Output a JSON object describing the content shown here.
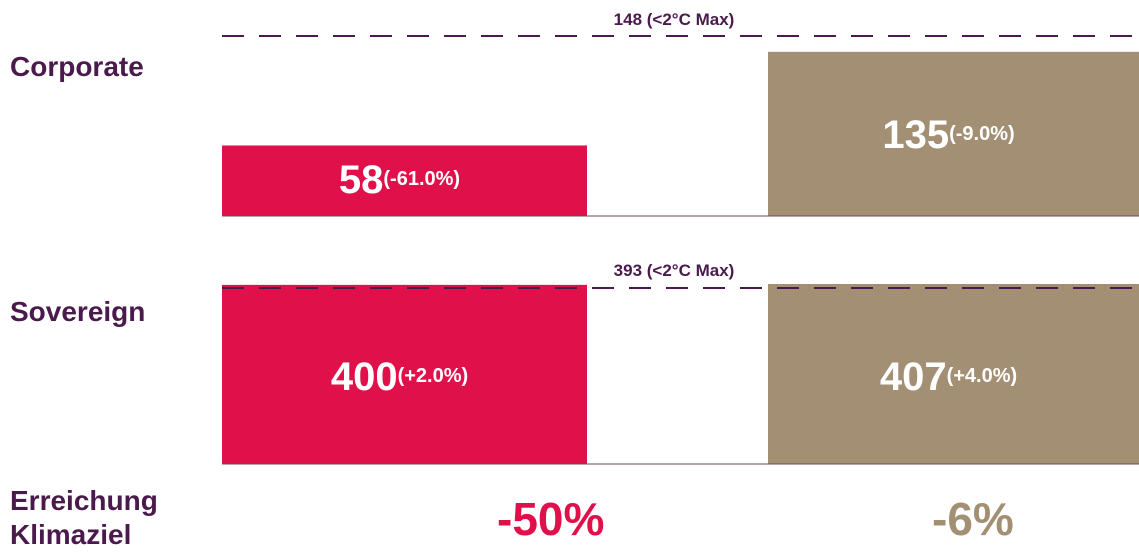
{
  "chart_data": {
    "type": "bar",
    "categories": [
      "Corporate",
      "Sovereign"
    ],
    "colors": {
      "series1": "#e0104a",
      "series2": "#a38f74",
      "text": "#4a1a4c",
      "threshold": "#4a1a4c"
    },
    "series": [
      {
        "values": [
          58,
          400
        ],
        "change_labels": [
          "(-61.0%)",
          "(+2.0%)"
        ]
      },
      {
        "values": [
          135,
          407
        ],
        "change_labels": [
          "(-9.0%)",
          "(+4.0%)"
        ]
      }
    ],
    "thresholds": [
      {
        "value": 148,
        "label": "148 (<2°C Max)"
      },
      {
        "value": 393,
        "label": "393 (<2°C Max)"
      }
    ],
    "axis_max": [
      148,
      393
    ],
    "footer": {
      "label_line1": "Erreichung",
      "label_line2": "Klimaziel",
      "values": [
        "-50%",
        "-6%"
      ]
    }
  }
}
